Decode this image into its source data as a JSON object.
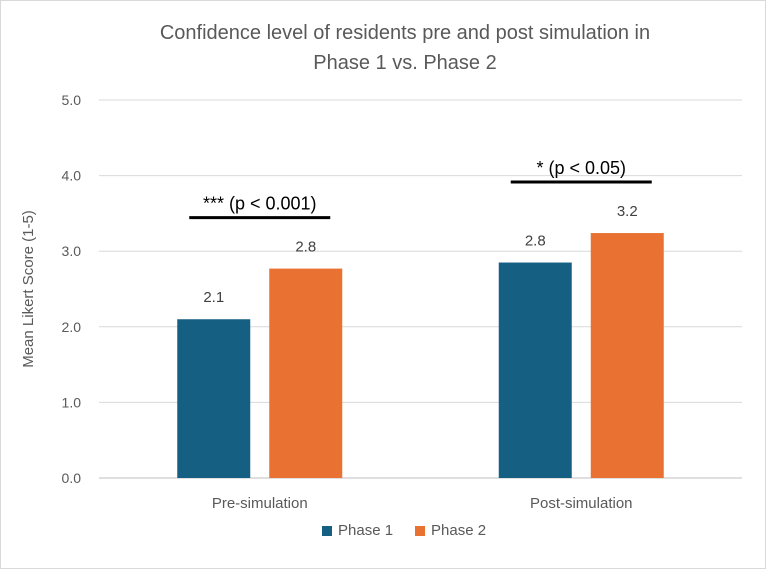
{
  "chart_data": {
    "type": "bar",
    "title_lines": [
      "Confidence level of residents pre and post simulation in",
      "Phase 1 vs. Phase 2"
    ],
    "xlabel": "",
    "ylabel": "Mean Likert Score (1-5)",
    "ylim": [
      0,
      5
    ],
    "yticks": [
      "0.0",
      "1.0",
      "2.0",
      "3.0",
      "4.0",
      "5.0"
    ],
    "categories": [
      "Pre-simulation",
      "Post-simulation"
    ],
    "series": [
      {
        "name": "Phase 1",
        "values": [
          2.1,
          2.85
        ],
        "labels": [
          "2.1",
          "2.8"
        ],
        "color": "#156082"
      },
      {
        "name": "Phase 2",
        "values": [
          2.77,
          3.24
        ],
        "labels": [
          "2.8",
          "3.2"
        ],
        "color": "#E97132"
      }
    ],
    "annotations": [
      "*** (p < 0.001)",
      "* (p < 0.05)"
    ],
    "grid": true,
    "legend_position": "bottom"
  }
}
